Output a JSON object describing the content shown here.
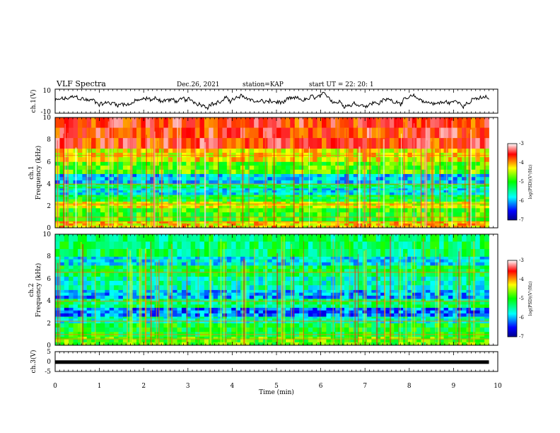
{
  "header": {
    "title": "VLF Spectra",
    "date": "Dec.26, 2021",
    "station": "station=KAP",
    "start": "start  UT =  22: 20: 1"
  },
  "chart_data": [
    {
      "type": "line",
      "panel": "ch1-waveform",
      "ylabel": "ch.1(V)",
      "ylim": [
        -10,
        10
      ],
      "yticks": [
        "10",
        "-10"
      ],
      "xlim": [
        0,
        10
      ],
      "xlim_data_end": 9.8
    },
    {
      "type": "heatmap",
      "panel": "ch1-spectrogram",
      "ylabel_line1": "ch.1",
      "ylabel_line2": "Frequency (kHz)",
      "ylim": [
        0,
        10
      ],
      "yticks": [
        "0",
        "2",
        "4",
        "6",
        "8",
        "10"
      ],
      "colorbar": {
        "label": "log(PSD)(V²/Hz)",
        "range": [
          -7,
          -3
        ],
        "ticks": [
          "-3",
          "-4",
          "-5",
          "-6",
          "-7"
        ]
      },
      "band_levels": [
        {
          "f": [
            0.0,
            0.6
          ],
          "level": -4.2
        },
        {
          "f": [
            0.6,
            1.8
          ],
          "level": -4.9
        },
        {
          "f": [
            1.8,
            2.4
          ],
          "level": -4.4
        },
        {
          "f": [
            2.4,
            3.0
          ],
          "level": -5.1
        },
        {
          "f": [
            3.0,
            3.6
          ],
          "level": -5.8
        },
        {
          "f": [
            3.6,
            4.0
          ],
          "level": -5.3
        },
        {
          "f": [
            4.0,
            4.9
          ],
          "level": -5.9
        },
        {
          "f": [
            4.9,
            6.0
          ],
          "level": -4.8
        },
        {
          "f": [
            6.0,
            7.2
          ],
          "level": -4.3
        },
        {
          "f": [
            7.2,
            10.0
          ],
          "level": -3.6
        }
      ]
    },
    {
      "type": "heatmap",
      "panel": "ch2-spectrogram",
      "ylabel_line1": "ch.2",
      "ylabel_line2": "Frequency (kHz)",
      "ylim": [
        0,
        10
      ],
      "yticks": [
        "0",
        "2",
        "4",
        "6",
        "8",
        "10"
      ],
      "colorbar": {
        "label": "log(PSD)(V²/Hz)",
        "range": [
          -7,
          -3
        ],
        "ticks": [
          "-3",
          "-4",
          "-5",
          "-6",
          "-7"
        ]
      },
      "band_levels": [
        {
          "f": [
            0.0,
            0.8
          ],
          "level": -4.8
        },
        {
          "f": [
            0.8,
            2.0
          ],
          "level": -5.1
        },
        {
          "f": [
            2.0,
            2.6
          ],
          "level": -5.6
        },
        {
          "f": [
            2.6,
            3.4
          ],
          "level": -6.2
        },
        {
          "f": [
            3.4,
            4.2
          ],
          "level": -5.3
        },
        {
          "f": [
            4.2,
            5.0
          ],
          "level": -6.0
        },
        {
          "f": [
            5.0,
            6.2
          ],
          "level": -5.6
        },
        {
          "f": [
            6.2,
            7.2
          ],
          "level": -5.2
        },
        {
          "f": [
            7.2,
            8.0
          ],
          "level": -5.8
        },
        {
          "f": [
            8.0,
            10.0
          ],
          "level": -5.3
        }
      ]
    },
    {
      "type": "line",
      "panel": "ch3-waveform",
      "ylabel": "ch.3(V)",
      "ylim": [
        -5,
        5
      ],
      "yticks": [
        "5",
        "0",
        "-5"
      ],
      "baseline": -0.3,
      "xlabel": "Time  (min)",
      "xlim": [
        0,
        10
      ],
      "xticks": [
        "0",
        "1",
        "2",
        "3",
        "4",
        "5",
        "6",
        "7",
        "8",
        "9",
        "10"
      ]
    }
  ]
}
